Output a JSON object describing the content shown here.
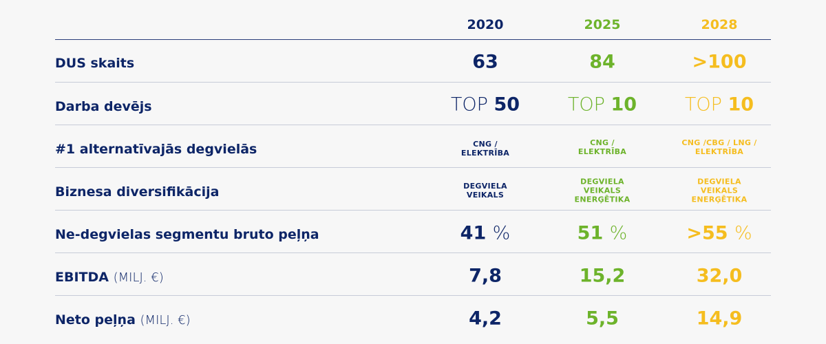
{
  "headers": [
    "2020",
    "2025",
    "2028"
  ],
  "rows": [
    {
      "label": "DUS skaits",
      "unit": "",
      "values": [
        "63",
        "84",
        ">100"
      ]
    },
    {
      "label": "Darba devējs",
      "unit": "",
      "prefix": "TOP",
      "values": [
        "50",
        "10",
        "10"
      ]
    },
    {
      "label": "#1 alternatīvajās degvielās",
      "unit": "",
      "values": [
        [
          "CNG /",
          "ELEKTRĪBA"
        ],
        [
          "CNG /",
          "ELEKTRĪBA"
        ],
        [
          "CNG /CBG / LNG /",
          "ELEKTRĪBA"
        ]
      ]
    },
    {
      "label": "Biznesa diversifikācija",
      "unit": "",
      "values": [
        [
          "DEGVIELA",
          "VEIKALS"
        ],
        [
          "DEGVIELA",
          "VEIKALS",
          "ENERĢĒTIKA"
        ],
        [
          "DEGVIELA",
          "VEIKALS",
          "ENERĢĒTIKA"
        ]
      ]
    },
    {
      "label": "Ne-degvielas segmentu bruto peļņa",
      "unit": "",
      "values": [
        "41",
        "51",
        ">55"
      ],
      "suffix": "%"
    },
    {
      "label": "EBITDA",
      "unit": "(MILJ. €)",
      "values": [
        "7,8",
        "15,2",
        "32,0"
      ]
    },
    {
      "label": "Neto peļņa",
      "unit": "(MILJ. €)",
      "values": [
        "4,2",
        "5,5",
        "14,9"
      ]
    }
  ],
  "colors": {
    "col2020": "#0d2567",
    "col2025": "#6db32b",
    "col2028": "#f5bd1f",
    "label": "#0d2567"
  }
}
